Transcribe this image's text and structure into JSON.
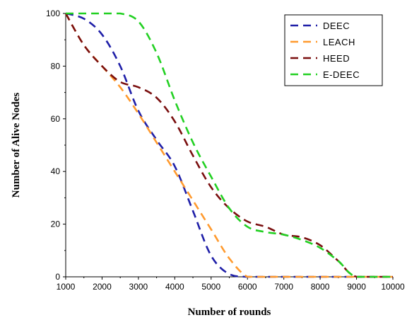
{
  "chart_data": {
    "type": "line",
    "xlabel": "Number of rounds",
    "ylabel": "Number of Alive Nodes",
    "xlim": [
      1000,
      10000
    ],
    "ylim": [
      0,
      100
    ],
    "xticks": [
      "1000",
      "2000",
      "3000",
      "4000",
      "5000",
      "6000",
      "7000",
      "8000",
      "9000",
      "10000"
    ],
    "yticks": [
      "0",
      "20",
      "40",
      "60",
      "80",
      "100"
    ],
    "legend_position": "top-right",
    "grid": false,
    "series": [
      {
        "name": "DEEC",
        "color": "#1f1fa8",
        "style": "dashed",
        "points": [
          [
            1000,
            100
          ],
          [
            1500,
            98
          ],
          [
            2000,
            92
          ],
          [
            2500,
            80
          ],
          [
            3000,
            63
          ],
          [
            3500,
            52
          ],
          [
            4000,
            42
          ],
          [
            4500,
            25
          ],
          [
            5000,
            8
          ],
          [
            5500,
            1
          ],
          [
            6000,
            0
          ],
          [
            7000,
            0
          ],
          [
            8000,
            0
          ],
          [
            9000,
            0
          ],
          [
            10000,
            0
          ]
        ]
      },
      {
        "name": "LEACH",
        "color": "#ff9a2e",
        "style": "dashed",
        "points": [
          [
            1000,
            100
          ],
          [
            1500,
            88
          ],
          [
            2000,
            80
          ],
          [
            2500,
            72
          ],
          [
            3000,
            62
          ],
          [
            3500,
            51
          ],
          [
            4000,
            40
          ],
          [
            4500,
            29
          ],
          [
            5000,
            18
          ],
          [
            5500,
            7
          ],
          [
            6000,
            0
          ],
          [
            6500,
            0
          ],
          [
            7000,
            0
          ],
          [
            8000,
            0
          ],
          [
            9000,
            0
          ],
          [
            10000,
            0
          ]
        ]
      },
      {
        "name": "HEED",
        "color": "#7a0f0f",
        "style": "dashed",
        "points": [
          [
            1000,
            100
          ],
          [
            1500,
            88
          ],
          [
            2000,
            80
          ],
          [
            2500,
            74
          ],
          [
            3000,
            72
          ],
          [
            3500,
            68
          ],
          [
            4000,
            59
          ],
          [
            4500,
            46
          ],
          [
            5000,
            34
          ],
          [
            5500,
            26
          ],
          [
            6000,
            21
          ],
          [
            6500,
            19
          ],
          [
            7000,
            16
          ],
          [
            7500,
            15
          ],
          [
            8000,
            12
          ],
          [
            8500,
            6
          ],
          [
            9000,
            0
          ],
          [
            10000,
            0
          ]
        ]
      },
      {
        "name": "E-DEEC",
        "color": "#22d022",
        "style": "dashed",
        "points": [
          [
            1000,
            100
          ],
          [
            1500,
            100
          ],
          [
            2000,
            100
          ],
          [
            2500,
            100
          ],
          [
            3000,
            97
          ],
          [
            3500,
            85
          ],
          [
            4000,
            67
          ],
          [
            4500,
            51
          ],
          [
            5000,
            38
          ],
          [
            5500,
            26
          ],
          [
            6000,
            19
          ],
          [
            6500,
            17
          ],
          [
            7000,
            16
          ],
          [
            7500,
            14
          ],
          [
            8000,
            11
          ],
          [
            8500,
            6
          ],
          [
            9000,
            0
          ],
          [
            10000,
            0
          ]
        ]
      }
    ]
  }
}
